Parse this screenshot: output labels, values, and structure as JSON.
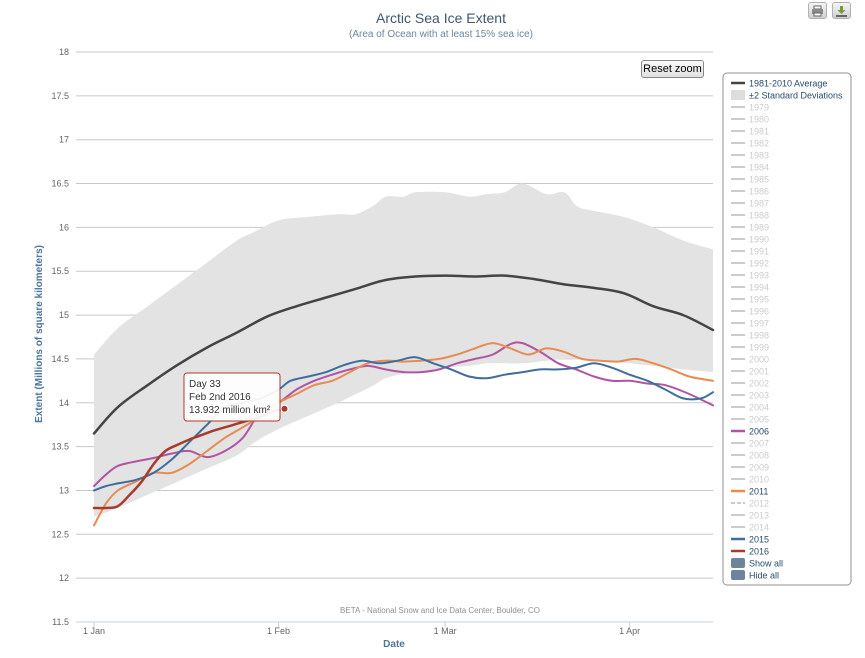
{
  "toolbar": {
    "print_icon": "printer-icon",
    "download_icon": "download-icon"
  },
  "reset_zoom_label": "Reset zoom",
  "tooltip": {
    "line1": "Day 33",
    "line2": "Feb 2nd 2016",
    "line3": "13.932 million km²",
    "color": "#a93a2e"
  },
  "chart_data": {
    "type": "line",
    "title": "Arctic Sea Ice Extent",
    "subtitle": "(Area of Ocean with at least 15% sea ice)",
    "xlabel": "Date",
    "ylabel": "Extent (Millions of square kilometers)",
    "xlim": [
      1,
      105
    ],
    "ylim": [
      11.5,
      18
    ],
    "grid": true,
    "legend_position": "right",
    "credit": "BETA - National Snow and Ice Data Center, Boulder, CO",
    "x_ticks": [
      {
        "label": "1 Jan",
        "day": 1
      },
      {
        "label": "1 Feb",
        "day": 32
      },
      {
        "label": "1 Mar",
        "day": 60
      },
      {
        "label": "1 Apr",
        "day": 91
      }
    ],
    "y_ticks": [
      "11.5",
      "12",
      "12.5",
      "13",
      "13.5",
      "14",
      "14.5",
      "15",
      "15.5",
      "16",
      "16.5",
      "17",
      "17.5",
      "18"
    ],
    "band": {
      "name": "±2 Standard Deviations",
      "color": "#e3e3e3",
      "x": [
        1,
        5,
        10,
        15,
        20,
        25,
        28,
        32,
        37,
        42,
        45,
        48,
        50,
        53,
        55,
        60,
        64,
        67,
        70,
        73,
        77,
        80,
        82,
        84,
        88,
        91,
        95,
        100,
        105
      ],
      "upper": [
        14.55,
        14.85,
        15.1,
        15.35,
        15.6,
        15.85,
        15.95,
        16.08,
        16.12,
        16.15,
        16.15,
        16.25,
        16.35,
        16.35,
        16.4,
        16.4,
        16.35,
        16.38,
        16.4,
        16.5,
        16.38,
        16.4,
        16.25,
        16.2,
        16.15,
        16.1,
        16.0,
        15.85,
        15.75
      ],
      "lower": [
        12.7,
        12.8,
        12.95,
        13.1,
        13.25,
        13.4,
        13.55,
        13.7,
        13.85,
        14.0,
        14.1,
        14.2,
        14.28,
        14.33,
        14.35,
        14.4,
        14.42,
        14.45,
        14.45,
        14.45,
        14.48,
        14.5,
        14.5,
        14.48,
        14.47,
        14.45,
        14.42,
        14.38,
        14.35
      ]
    },
    "series": [
      {
        "name": "1981-2010 Average",
        "color": "#444444",
        "width": 2.5,
        "x": [
          1,
          5,
          10,
          15,
          20,
          25,
          30,
          35,
          40,
          45,
          50,
          55,
          60,
          65,
          70,
          75,
          80,
          85,
          90,
          95,
          100,
          105
        ],
        "y": [
          13.65,
          13.95,
          14.2,
          14.43,
          14.63,
          14.8,
          14.98,
          15.1,
          15.2,
          15.3,
          15.4,
          15.44,
          15.45,
          15.44,
          15.45,
          15.41,
          15.35,
          15.31,
          15.25,
          15.1,
          15.0,
          14.83
        ]
      },
      {
        "name": "2006",
        "color": "#b155a3",
        "width": 2,
        "x": [
          1,
          3,
          5,
          8,
          11,
          14,
          17,
          20,
          23,
          26,
          29,
          32,
          35,
          38,
          41,
          44,
          47,
          50,
          53,
          56,
          59,
          62,
          65,
          68,
          71,
          73,
          76,
          79,
          82,
          85,
          88,
          91,
          94,
          97,
          101,
          105
        ],
        "y": [
          13.05,
          13.18,
          13.28,
          13.33,
          13.37,
          13.42,
          13.45,
          13.38,
          13.45,
          13.6,
          13.9,
          14.0,
          14.15,
          14.25,
          14.32,
          14.38,
          14.42,
          14.38,
          14.35,
          14.35,
          14.38,
          14.45,
          14.5,
          14.55,
          14.67,
          14.68,
          14.58,
          14.45,
          14.38,
          14.3,
          14.25,
          14.25,
          14.22,
          14.2,
          14.1,
          13.97
        ]
      },
      {
        "name": "2011",
        "color": "#e88b52",
        "width": 2,
        "x": [
          1,
          3,
          5,
          8,
          11,
          14,
          17,
          20,
          23,
          26,
          29,
          32,
          35,
          38,
          41,
          44,
          47,
          50,
          53,
          56,
          59,
          62,
          65,
          68,
          71,
          74,
          77,
          80,
          83,
          86,
          89,
          92,
          95,
          98,
          101,
          105
        ],
        "y": [
          12.6,
          12.85,
          13.0,
          13.1,
          13.2,
          13.2,
          13.3,
          13.45,
          13.6,
          13.72,
          13.85,
          14.0,
          14.1,
          14.2,
          14.25,
          14.35,
          14.45,
          14.48,
          14.47,
          14.48,
          14.5,
          14.55,
          14.62,
          14.68,
          14.62,
          14.55,
          14.62,
          14.58,
          14.5,
          14.48,
          14.47,
          14.5,
          14.45,
          14.38,
          14.3,
          14.25
        ]
      },
      {
        "name": "2015",
        "color": "#3e6e9e",
        "width": 2,
        "x": [
          1,
          3,
          5,
          8,
          11,
          14,
          17,
          20,
          23,
          26,
          29,
          32,
          34,
          37,
          40,
          43,
          46,
          49,
          52,
          55,
          58,
          61,
          64,
          67,
          70,
          73,
          76,
          79,
          82,
          85,
          88,
          91,
          94,
          97,
          100,
          103,
          105
        ],
        "y": [
          13.0,
          13.05,
          13.08,
          13.12,
          13.2,
          13.35,
          13.55,
          13.75,
          13.95,
          14.0,
          14.05,
          14.15,
          14.25,
          14.3,
          14.35,
          14.43,
          14.48,
          14.45,
          14.48,
          14.52,
          14.45,
          14.38,
          14.3,
          14.28,
          14.32,
          14.35,
          14.38,
          14.38,
          14.4,
          14.45,
          14.4,
          14.32,
          14.25,
          14.15,
          14.05,
          14.05,
          14.12
        ]
      },
      {
        "name": "2016",
        "color": "#a93a2e",
        "width": 2.5,
        "x": [
          1,
          3,
          5,
          7,
          9,
          11,
          13,
          15,
          17,
          19,
          21,
          23,
          25,
          27,
          29,
          31,
          33
        ],
        "y": [
          12.8,
          12.8,
          12.82,
          12.95,
          13.1,
          13.3,
          13.45,
          13.52,
          13.58,
          13.63,
          13.68,
          13.72,
          13.76,
          13.8,
          13.84,
          13.9,
          13.932
        ]
      }
    ],
    "legend_items": [
      {
        "label": "1981-2010 Average",
        "kind": "line",
        "color": "#444444",
        "active": true
      },
      {
        "label": "±2 Standard Deviations",
        "kind": "area",
        "color": "#dddddd",
        "active": true
      },
      {
        "label": "1979",
        "kind": "line",
        "color": "#cccccc",
        "active": false
      },
      {
        "label": "1980",
        "kind": "line",
        "color": "#cccccc",
        "active": false
      },
      {
        "label": "1981",
        "kind": "line",
        "color": "#cccccc",
        "active": false
      },
      {
        "label": "1982",
        "kind": "line",
        "color": "#cccccc",
        "active": false
      },
      {
        "label": "1983",
        "kind": "line",
        "color": "#cccccc",
        "active": false
      },
      {
        "label": "1984",
        "kind": "line",
        "color": "#cccccc",
        "active": false
      },
      {
        "label": "1985",
        "kind": "line",
        "color": "#cccccc",
        "active": false
      },
      {
        "label": "1986",
        "kind": "line",
        "color": "#cccccc",
        "active": false
      },
      {
        "label": "1987",
        "kind": "line",
        "color": "#cccccc",
        "active": false
      },
      {
        "label": "1988",
        "kind": "line",
        "color": "#cccccc",
        "active": false
      },
      {
        "label": "1989",
        "kind": "line",
        "color": "#cccccc",
        "active": false
      },
      {
        "label": "1990",
        "kind": "line",
        "color": "#cccccc",
        "active": false
      },
      {
        "label": "1991",
        "kind": "line",
        "color": "#cccccc",
        "active": false
      },
      {
        "label": "1992",
        "kind": "line",
        "color": "#cccccc",
        "active": false
      },
      {
        "label": "1993",
        "kind": "line",
        "color": "#cccccc",
        "active": false
      },
      {
        "label": "1994",
        "kind": "line",
        "color": "#cccccc",
        "active": false
      },
      {
        "label": "1995",
        "kind": "line",
        "color": "#cccccc",
        "active": false
      },
      {
        "label": "1996",
        "kind": "line",
        "color": "#cccccc",
        "active": false
      },
      {
        "label": "1997",
        "kind": "line",
        "color": "#cccccc",
        "active": false
      },
      {
        "label": "1998",
        "kind": "line",
        "color": "#cccccc",
        "active": false
      },
      {
        "label": "1999",
        "kind": "line",
        "color": "#cccccc",
        "active": false
      },
      {
        "label": "2000",
        "kind": "line",
        "color": "#cccccc",
        "active": false
      },
      {
        "label": "2001",
        "kind": "line",
        "color": "#cccccc",
        "active": false
      },
      {
        "label": "2002",
        "kind": "line",
        "color": "#cccccc",
        "active": false
      },
      {
        "label": "2003",
        "kind": "line",
        "color": "#cccccc",
        "active": false
      },
      {
        "label": "2004",
        "kind": "line",
        "color": "#cccccc",
        "active": false
      },
      {
        "label": "2005",
        "kind": "line",
        "color": "#cccccc",
        "active": false
      },
      {
        "label": "2006",
        "kind": "line",
        "color": "#b155a3",
        "active": true
      },
      {
        "label": "2007",
        "kind": "line",
        "color": "#cccccc",
        "active": false
      },
      {
        "label": "2008",
        "kind": "line",
        "color": "#cccccc",
        "active": false
      },
      {
        "label": "2009",
        "kind": "line",
        "color": "#cccccc",
        "active": false
      },
      {
        "label": "2010",
        "kind": "line",
        "color": "#cccccc",
        "active": false
      },
      {
        "label": "2011",
        "kind": "line",
        "color": "#e88b52",
        "active": true
      },
      {
        "label": "2012",
        "kind": "dash",
        "color": "#cccccc",
        "active": false
      },
      {
        "label": "2013",
        "kind": "line",
        "color": "#cccccc",
        "active": false
      },
      {
        "label": "2014",
        "kind": "line",
        "color": "#cccccc",
        "active": false
      },
      {
        "label": "2015",
        "kind": "line",
        "color": "#3e6e9e",
        "active": true
      },
      {
        "label": "2016",
        "kind": "line",
        "color": "#a93a2e",
        "active": true
      },
      {
        "label": "Show all",
        "kind": "button",
        "color": "#6d839e",
        "active": true
      },
      {
        "label": "Hide all",
        "kind": "button",
        "color": "#6d839e",
        "active": true
      }
    ]
  }
}
